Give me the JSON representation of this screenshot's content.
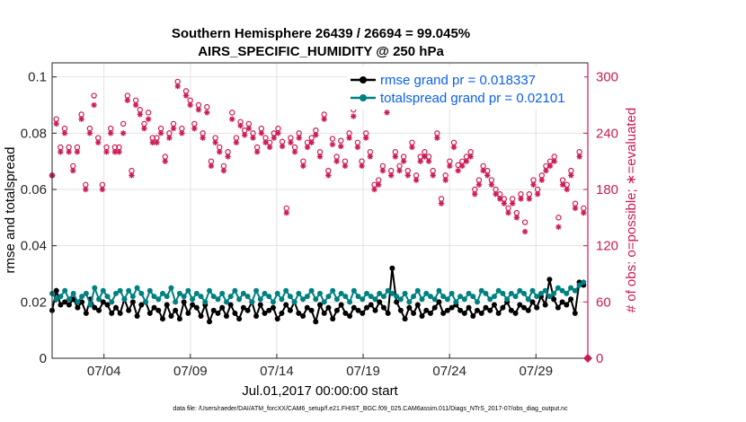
{
  "chart_data": {
    "type": "line",
    "title": "Southern Hemisphere 26439 / 26694 = 99.045%",
    "subtitle": "AIRS_SPECIFIC_HUMIDITY @ 250 hPa",
    "ylabel": "rmse and totalspread",
    "y2label": "# of obs: o=possible; ∗=evaluated",
    "xlabel": "Jul.01,2017 00:00:00 start",
    "footnote": "data file: /Users/raeder/DAI/ATM_forcXX/CAM6_setup/f.e21.FHIST_BGC.f09_025.CAM6assim.011/Diags_NTrS_2017-07/obs_diag_output.nc",
    "xlim": [
      1,
      32
    ],
    "ylim": [
      0,
      0.105
    ],
    "y2lim": [
      0,
      315
    ],
    "yticks": [
      "0",
      "0.02",
      "0.04",
      "0.06",
      "0.08",
      "0.1"
    ],
    "y2ticks": [
      "0",
      "60",
      "120",
      "180",
      "240",
      "300"
    ],
    "xticks": [
      {
        "day": 4,
        "label": "07/04"
      },
      {
        "day": 9,
        "label": "07/09"
      },
      {
        "day": 14,
        "label": "07/14"
      },
      {
        "day": 19,
        "label": "07/19"
      },
      {
        "day": 24,
        "label": "07/24"
      },
      {
        "day": 29,
        "label": "07/29"
      }
    ],
    "legend": {
      "placement": "top-right",
      "entries": [
        "rmse grand pr = 0.018337",
        "totalspread grand pr = 0.02101"
      ]
    },
    "colors": {
      "rmse": "#000000",
      "totalspread": "#008080",
      "obs": "#cc1a52",
      "legend_text": "#0a5ff0"
    },
    "series": [
      {
        "name": "rmse",
        "axis": "left",
        "values": [
          0.017,
          0.024,
          0.019,
          0.02,
          0.019,
          0.021,
          0.018,
          0.02,
          0.016,
          0.021,
          0.018,
          0.017,
          0.02,
          0.019,
          0.016,
          0.018,
          0.016,
          0.021,
          0.017,
          0.02,
          0.015,
          0.019,
          0.02,
          0.016,
          0.018,
          0.017,
          0.014,
          0.019,
          0.015,
          0.017,
          0.014,
          0.02,
          0.016,
          0.019,
          0.018,
          0.015,
          0.019,
          0.013,
          0.017,
          0.016,
          0.018,
          0.015,
          0.019,
          0.016,
          0.014,
          0.018,
          0.017,
          0.02,
          0.015,
          0.019,
          0.016,
          0.017,
          0.018,
          0.014,
          0.016,
          0.019,
          0.017,
          0.02,
          0.016,
          0.015,
          0.018,
          0.017,
          0.013,
          0.019,
          0.016,
          0.018,
          0.014,
          0.017,
          0.019,
          0.016,
          0.015,
          0.018,
          0.017,
          0.016,
          0.018,
          0.019,
          0.017,
          0.02,
          0.018,
          0.016,
          0.032,
          0.02,
          0.017,
          0.014,
          0.018,
          0.016,
          0.019,
          0.015,
          0.017,
          0.016,
          0.018,
          0.02,
          0.016,
          0.017,
          0.018,
          0.019,
          0.017,
          0.016,
          0.018,
          0.015,
          0.017,
          0.016,
          0.018,
          0.017,
          0.019,
          0.016,
          0.018,
          0.02,
          0.017,
          0.016,
          0.019,
          0.018,
          0.017,
          0.02,
          0.018,
          0.022,
          0.019,
          0.028,
          0.021,
          0.018,
          0.02,
          0.019,
          0.021,
          0.016,
          0.027,
          0.026
        ]
      },
      {
        "name": "totalspread",
        "axis": "left",
        "values": [
          0.023,
          0.021,
          0.022,
          0.024,
          0.021,
          0.023,
          0.02,
          0.022,
          0.023,
          0.019,
          0.025,
          0.021,
          0.024,
          0.022,
          0.02,
          0.023,
          0.024,
          0.021,
          0.024,
          0.022,
          0.025,
          0.023,
          0.02,
          0.024,
          0.022,
          0.021,
          0.023,
          0.022,
          0.025,
          0.02,
          0.023,
          0.022,
          0.024,
          0.021,
          0.023,
          0.022,
          0.02,
          0.024,
          0.022,
          0.021,
          0.023,
          0.02,
          0.022,
          0.024,
          0.021,
          0.023,
          0.022,
          0.02,
          0.024,
          0.021,
          0.023,
          0.022,
          0.02,
          0.023,
          0.021,
          0.024,
          0.022,
          0.02,
          0.023,
          0.021,
          0.022,
          0.024,
          0.021,
          0.023,
          0.02,
          0.022,
          0.024,
          0.021,
          0.023,
          0.022,
          0.02,
          0.024,
          0.022,
          0.021,
          0.023,
          0.022,
          0.021,
          0.023,
          0.022,
          0.024,
          0.023,
          0.022,
          0.021,
          0.023,
          0.02,
          0.022,
          0.024,
          0.021,
          0.023,
          0.022,
          0.021,
          0.024,
          0.022,
          0.021,
          0.023,
          0.02,
          0.022,
          0.021,
          0.023,
          0.022,
          0.02,
          0.024,
          0.023,
          0.021,
          0.022,
          0.024,
          0.023,
          0.021,
          0.023,
          0.022,
          0.024,
          0.023,
          0.021,
          0.024,
          0.022,
          0.023,
          0.024,
          0.022,
          0.023,
          0.025,
          0.024,
          0.023,
          0.025,
          0.024,
          0.026,
          0.027
        ]
      },
      {
        "name": "obs possible",
        "axis": "right",
        "marker": "o",
        "values": [
          195,
          255,
          225,
          245,
          225,
          205,
          225,
          260,
          185,
          245,
          280,
          235,
          185,
          225,
          245,
          225,
          225,
          250,
          280,
          200,
          275,
          265,
          250,
          262,
          235,
          235,
          245,
          215,
          240,
          250,
          295,
          245,
          285,
          275,
          250,
          270,
          240,
          268,
          210,
          235,
          225,
          205,
          220,
          262,
          235,
          252,
          243,
          250,
          240,
          225,
          245,
          235,
          230,
          240,
          245,
          231,
          160,
          235,
          225,
          240,
          210,
          230,
          235,
          243,
          220,
          260,
          200,
          234,
          215,
          232,
          210,
          240,
          265,
          230,
          210,
          240,
          220,
          185,
          190,
          205,
          268,
          200,
          220,
          205,
          215,
          200,
          230,
          195,
          215,
          220,
          215,
          200,
          240,
          170,
          195,
          210,
          230,
          206,
          210,
          215,
          220,
          180,
          190,
          205,
          200,
          190,
          180,
          175,
          170,
          160,
          170,
          155,
          175,
          145,
          175,
          190,
          180,
          195,
          205,
          210,
          215,
          150,
          190,
          185,
          200,
          165,
          220,
          160
        ]
      },
      {
        "name": "obs evaluated",
        "axis": "right",
        "marker": "*",
        "values": [
          195,
          250,
          220,
          240,
          220,
          200,
          220,
          255,
          180,
          240,
          270,
          230,
          180,
          220,
          240,
          220,
          220,
          240,
          275,
          195,
          270,
          260,
          245,
          255,
          230,
          230,
          240,
          210,
          235,
          245,
          290,
          240,
          280,
          270,
          245,
          265,
          235,
          262,
          205,
          230,
          220,
          200,
          215,
          255,
          230,
          248,
          238,
          245,
          235,
          220,
          240,
          230,
          225,
          235,
          240,
          226,
          155,
          230,
          220,
          235,
          205,
          225,
          230,
          238,
          215,
          255,
          195,
          228,
          210,
          226,
          205,
          235,
          258,
          225,
          205,
          235,
          215,
          180,
          185,
          200,
          262,
          195,
          215,
          200,
          210,
          195,
          225,
          190,
          210,
          215,
          210,
          195,
          235,
          165,
          190,
          205,
          225,
          200,
          205,
          210,
          215,
          175,
          185,
          200,
          195,
          185,
          175,
          170,
          165,
          155,
          165,
          150,
          170,
          135,
          170,
          185,
          175,
          190,
          200,
          205,
          210,
          140,
          185,
          180,
          195,
          160,
          215,
          155
        ]
      }
    ]
  }
}
